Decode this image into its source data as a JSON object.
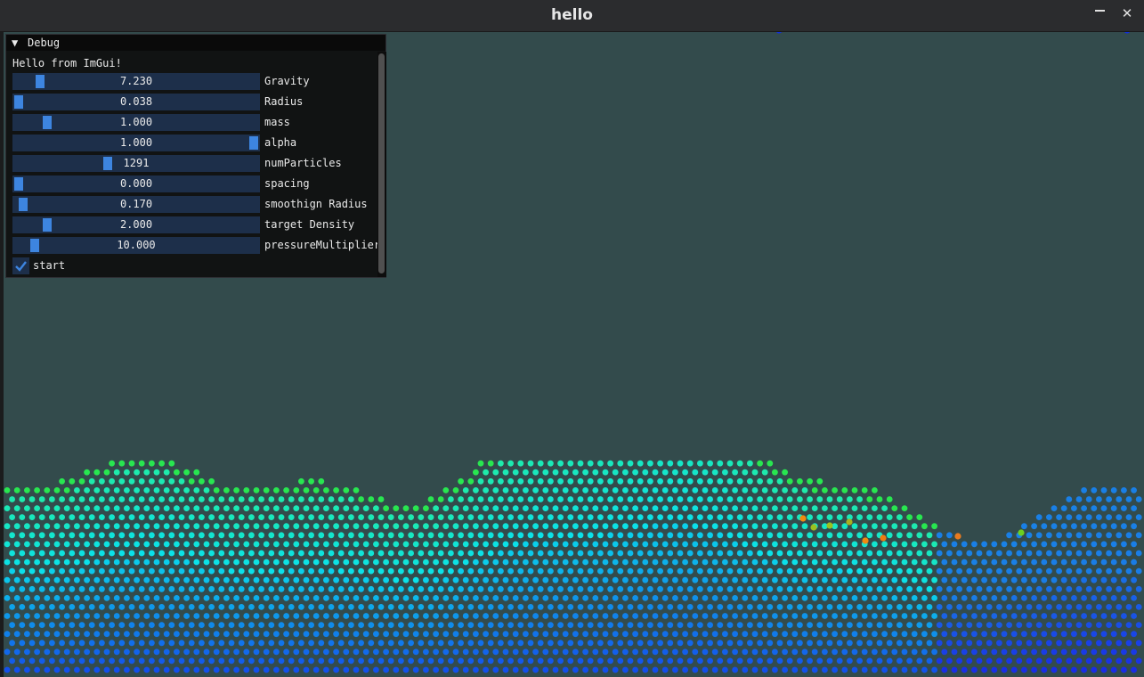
{
  "window": {
    "title": "hello",
    "close_glyph": "✕"
  },
  "debug": {
    "title": "Debug",
    "collapse_glyph": "▼",
    "hello": "Hello from ImGui!",
    "sliders": [
      {
        "label": "Gravity",
        "value": "7.230",
        "fraction": 0.09
      },
      {
        "label": "Radius",
        "value": "0.038",
        "fraction": 0.0
      },
      {
        "label": "mass",
        "value": "1.000",
        "fraction": 0.12
      },
      {
        "label": "alpha",
        "value": "1.000",
        "fraction": 1.0
      },
      {
        "label": "numParticles",
        "value": "1291",
        "fraction": 0.38
      },
      {
        "label": "spacing",
        "value": "0.000",
        "fraction": 0.0
      },
      {
        "label": "smoothign Radius",
        "value": "0.170",
        "fraction": 0.02
      },
      {
        "label": "target Density",
        "value": "2.000",
        "fraction": 0.12
      },
      {
        "label": "pressureMultiplier",
        "value": "10.000",
        "fraction": 0.07
      }
    ],
    "start": {
      "label": "start",
      "checked": true
    }
  },
  "colors": {
    "background": "#334b4c",
    "slider_bg": "#1d2f4a",
    "slider_grab": "#3d85e0",
    "panel": "#101010"
  }
}
